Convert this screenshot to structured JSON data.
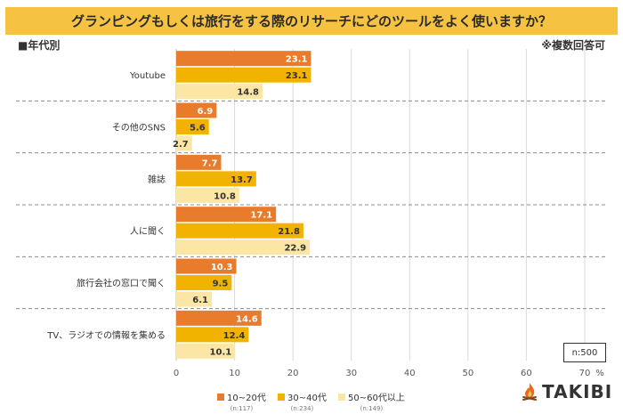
{
  "title": "グランピングもしくは旅行をする際のリサーチにどのツールをよく使いますか？",
  "subset_label": "■年代別",
  "note": "※複数回答可",
  "sample_size": "n:500",
  "brand": "TAKIBI",
  "colors": {
    "title_bg": "#f5c242",
    "s1": "#e87b2c",
    "s2": "#f2b300",
    "s3": "#fbe6a5"
  },
  "chart_data": {
    "type": "bar",
    "orientation": "horizontal",
    "categories": [
      "Youtube",
      "その他のSNS",
      "雑誌",
      "人に聞く",
      "旅行会社の窓口で聞く",
      "TV、ラジオでの情報を集める"
    ],
    "series": [
      {
        "name": "10~20代",
        "n": "(n:117)",
        "values": [
          23.1,
          6.9,
          7.7,
          17.1,
          10.3,
          14.6
        ]
      },
      {
        "name": "30~40代",
        "n": "(n:234)",
        "values": [
          23.1,
          5.6,
          13.7,
          21.8,
          9.5,
          12.4
        ]
      },
      {
        "name": "50~60代以上",
        "n": "(n:149)",
        "values": [
          14.8,
          2.7,
          10.8,
          22.9,
          6.1,
          10.1
        ]
      }
    ],
    "xlim": [
      0,
      70
    ],
    "xticks": [
      0,
      10,
      20,
      30,
      40,
      50,
      60,
      70
    ],
    "xunit": "%",
    "grid": true,
    "legend": "bottom"
  }
}
